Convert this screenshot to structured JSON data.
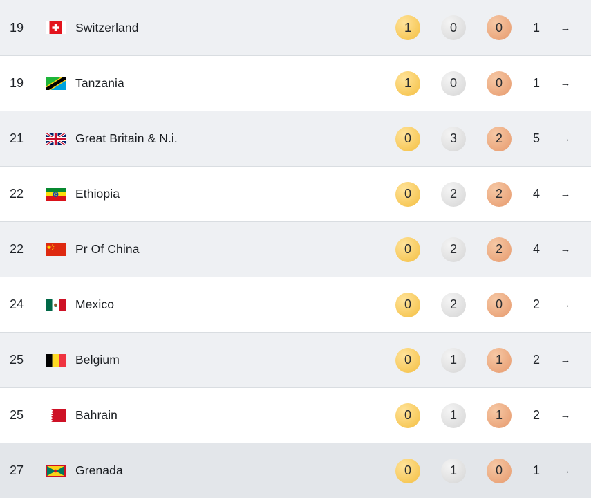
{
  "rows": [
    {
      "rank": "19",
      "country": "Switzerland",
      "flag": "switzerland-flag-icon",
      "gold": "1",
      "silver": "0",
      "bronze": "0",
      "total": "1"
    },
    {
      "rank": "19",
      "country": "Tanzania",
      "flag": "tanzania-flag-icon",
      "gold": "1",
      "silver": "0",
      "bronze": "0",
      "total": "1"
    },
    {
      "rank": "21",
      "country": "Great Britain & N.i.",
      "flag": "great-britain-flag-icon",
      "gold": "0",
      "silver": "3",
      "bronze": "2",
      "total": "5"
    },
    {
      "rank": "22",
      "country": "Ethiopia",
      "flag": "ethiopia-flag-icon",
      "gold": "0",
      "silver": "2",
      "bronze": "2",
      "total": "4"
    },
    {
      "rank": "22",
      "country": "Pr Of China",
      "flag": "china-flag-icon",
      "gold": "0",
      "silver": "2",
      "bronze": "2",
      "total": "4"
    },
    {
      "rank": "24",
      "country": "Mexico",
      "flag": "mexico-flag-icon",
      "gold": "0",
      "silver": "2",
      "bronze": "0",
      "total": "2"
    },
    {
      "rank": "25",
      "country": "Belgium",
      "flag": "belgium-flag-icon",
      "gold": "0",
      "silver": "1",
      "bronze": "1",
      "total": "2"
    },
    {
      "rank": "25",
      "country": "Bahrain",
      "flag": "bahrain-flag-icon",
      "gold": "0",
      "silver": "1",
      "bronze": "1",
      "total": "2"
    },
    {
      "rank": "27",
      "country": "Grenada",
      "flag": "grenada-flag-icon",
      "gold": "0",
      "silver": "1",
      "bronze": "0",
      "total": "1"
    }
  ],
  "arrow_glyph": "→",
  "colors": {
    "gold": "#f7c95a",
    "silver": "#dedede",
    "bronze": "#eba77d",
    "row_shade": "#eef0f3"
  }
}
